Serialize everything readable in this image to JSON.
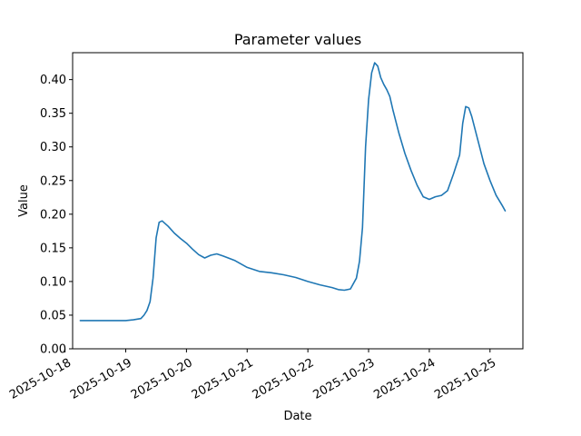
{
  "chart_data": {
    "type": "line",
    "title": "Parameter values",
    "xlabel": "Date",
    "ylabel": "Value",
    "ylim": [
      0.0,
      0.44
    ],
    "xlim": [
      "2025-10-18T03:00",
      "2025-10-25T13:00"
    ],
    "grid": false,
    "x_ticks": [
      "2025-10-18",
      "2025-10-19",
      "2025-10-20",
      "2025-10-21",
      "2025-10-22",
      "2025-10-23",
      "2025-10-24",
      "2025-10-25"
    ],
    "y_ticks": [
      "0.00",
      "0.05",
      "0.10",
      "0.15",
      "0.20",
      "0.25",
      "0.30",
      "0.35",
      "0.40"
    ],
    "series": [
      {
        "color": "#1f77b4",
        "x": [
          "2025-10-18T06:00",
          "2025-10-18T12:00",
          "2025-10-18T18:00",
          "2025-10-19T00:00",
          "2025-10-19T03:00",
          "2025-10-19T06:00",
          "2025-10-19T07:12",
          "2025-10-19T08:24",
          "2025-10-19T09:36",
          "2025-10-19T10:48",
          "2025-10-19T12:00",
          "2025-10-19T13:12",
          "2025-10-19T14:24",
          "2025-10-19T16:48",
          "2025-10-19T19:12",
          "2025-10-19T21:36",
          "2025-10-20T00:00",
          "2025-10-20T02:24",
          "2025-10-20T04:48",
          "2025-10-20T07:12",
          "2025-10-20T09:36",
          "2025-10-20T12:00",
          "2025-10-20T14:24",
          "2025-10-20T19:12",
          "2025-10-21T00:00",
          "2025-10-21T04:48",
          "2025-10-21T09:36",
          "2025-10-21T14:24",
          "2025-10-21T19:12",
          "2025-10-22T00:00",
          "2025-10-22T04:48",
          "2025-10-22T09:36",
          "2025-10-22T12:00",
          "2025-10-22T14:24",
          "2025-10-22T16:48",
          "2025-10-22T19:12",
          "2025-10-22T20:24",
          "2025-10-22T21:36",
          "2025-10-22T22:48",
          "2025-10-23T00:00",
          "2025-10-23T01:12",
          "2025-10-23T02:24",
          "2025-10-23T03:36",
          "2025-10-23T04:48",
          "2025-10-23T06:00",
          "2025-10-23T07:12",
          "2025-10-23T08:24",
          "2025-10-23T09:36",
          "2025-10-23T12:00",
          "2025-10-23T14:24",
          "2025-10-23T16:48",
          "2025-10-23T19:12",
          "2025-10-23T21:36",
          "2025-10-24T00:00",
          "2025-10-24T02:24",
          "2025-10-24T04:48",
          "2025-10-24T07:12",
          "2025-10-24T09:36",
          "2025-10-24T12:00",
          "2025-10-24T13:12",
          "2025-10-24T14:24",
          "2025-10-24T15:36",
          "2025-10-24T16:48",
          "2025-10-24T19:12",
          "2025-10-24T21:36",
          "2025-10-25T00:00",
          "2025-10-25T02:24",
          "2025-10-25T04:48",
          "2025-10-25T06:00"
        ],
        "values": [
          0.042,
          0.042,
          0.042,
          0.042,
          0.043,
          0.045,
          0.05,
          0.057,
          0.07,
          0.105,
          0.165,
          0.188,
          0.19,
          0.182,
          0.172,
          0.164,
          0.157,
          0.148,
          0.14,
          0.135,
          0.139,
          0.141,
          0.138,
          0.131,
          0.121,
          0.115,
          0.113,
          0.11,
          0.106,
          0.1,
          0.095,
          0.091,
          0.088,
          0.087,
          0.089,
          0.105,
          0.13,
          0.18,
          0.3,
          0.37,
          0.41,
          0.425,
          0.42,
          0.403,
          0.393,
          0.385,
          0.375,
          0.355,
          0.32,
          0.29,
          0.265,
          0.243,
          0.226,
          0.222,
          0.226,
          0.228,
          0.235,
          0.26,
          0.288,
          0.335,
          0.36,
          0.358,
          0.345,
          0.31,
          0.275,
          0.25,
          0.228,
          0.213,
          0.205
        ]
      }
    ]
  }
}
